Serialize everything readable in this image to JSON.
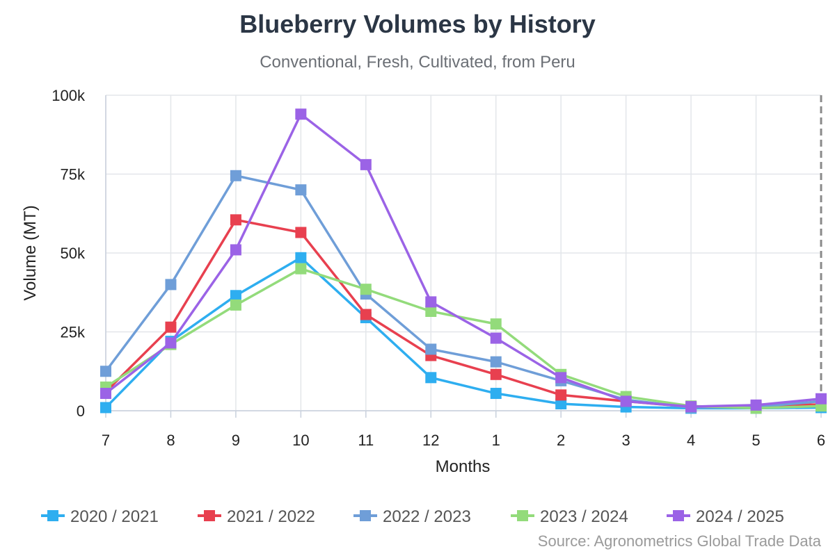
{
  "chart_data": {
    "type": "line",
    "title": "Blueberry Volumes by History",
    "subtitle": "Conventional, Fresh, Cultivated, from Peru",
    "xlabel": "Months",
    "ylabel": "Volume (MT)",
    "categories": [
      "7",
      "8",
      "9",
      "10",
      "11",
      "12",
      "1",
      "2",
      "3",
      "4",
      "5",
      "6"
    ],
    "ylim": [
      0,
      100000
    ],
    "yticks": [
      {
        "value": 0,
        "label": "0"
      },
      {
        "value": 25000,
        "label": "25k"
      },
      {
        "value": 50000,
        "label": "50k"
      },
      {
        "value": 75000,
        "label": "75k"
      },
      {
        "value": 100000,
        "label": "100k"
      }
    ],
    "grid": true,
    "legend": "bottom",
    "series": [
      {
        "name": "2020 / 2021",
        "color": "#2eaef0",
        "values": [
          1000,
          22000,
          36500,
          48500,
          29500,
          10500,
          5500,
          2200,
          1200,
          800,
          800,
          1000
        ]
      },
      {
        "name": "2021 / 2022",
        "color": "#e8404f",
        "values": [
          6000,
          26500,
          60500,
          56500,
          30500,
          17500,
          11500,
          5000,
          3000,
          1200,
          1500,
          2000
        ]
      },
      {
        "name": "2022 / 2023",
        "color": "#6f9ed8",
        "values": [
          12500,
          40000,
          74500,
          70000,
          37000,
          19500,
          15500,
          9500,
          3500,
          1000,
          1200,
          3000
        ]
      },
      {
        "name": "2023 / 2024",
        "color": "#93db7b",
        "values": [
          7500,
          21000,
          33500,
          45000,
          38500,
          31500,
          27500,
          11500,
          4500,
          1500,
          800,
          1500
        ]
      },
      {
        "name": "2024 / 2025",
        "color": "#9b63e6",
        "values": [
          5500,
          21500,
          51000,
          94000,
          78000,
          34500,
          23000,
          10500,
          3000,
          1300,
          1800,
          3800
        ]
      }
    ],
    "source": "Source: Agronometrics Global Trade Data"
  }
}
